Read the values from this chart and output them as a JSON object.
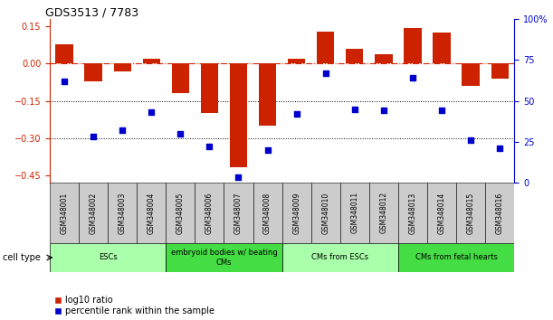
{
  "title": "GDS3513 / 7783",
  "samples": [
    "GSM348001",
    "GSM348002",
    "GSM348003",
    "GSM348004",
    "GSM348005",
    "GSM348006",
    "GSM348007",
    "GSM348008",
    "GSM348009",
    "GSM348010",
    "GSM348011",
    "GSM348012",
    "GSM348013",
    "GSM348014",
    "GSM348015",
    "GSM348016"
  ],
  "log10_ratio": [
    0.08,
    -0.07,
    -0.03,
    0.02,
    -0.12,
    -0.2,
    -0.42,
    -0.25,
    0.02,
    0.13,
    0.06,
    0.04,
    0.145,
    0.125,
    -0.09,
    -0.06
  ],
  "percentile_rank": [
    62,
    28,
    32,
    43,
    30,
    22,
    3,
    20,
    42,
    67,
    45,
    44,
    64,
    44,
    26,
    21
  ],
  "cell_types": [
    {
      "label": "ESCs",
      "start": 0,
      "end": 4,
      "color": "#AAFFAA"
    },
    {
      "label": "embryoid bodies w/ beating\nCMs",
      "start": 4,
      "end": 8,
      "color": "#44DD44"
    },
    {
      "label": "CMs from ESCs",
      "start": 8,
      "end": 12,
      "color": "#AAFFAA"
    },
    {
      "label": "CMs from fetal hearts",
      "start": 12,
      "end": 16,
      "color": "#44DD44"
    }
  ],
  "ylim_left": [
    -0.48,
    0.18
  ],
  "ylim_right": [
    0,
    100
  ],
  "yticks_left": [
    0.15,
    0.0,
    -0.15,
    -0.3,
    -0.45
  ],
  "yticks_right": [
    100,
    75,
    50,
    25,
    0
  ],
  "hline_value": 0,
  "dotted_lines": [
    -0.15,
    -0.3
  ],
  "bar_color": "#CC2200",
  "dot_color": "#0000CC",
  "bar_width": 0.6,
  "legend_items": [
    "log10 ratio",
    "percentile rank within the sample"
  ],
  "cell_type_label": "cell type"
}
